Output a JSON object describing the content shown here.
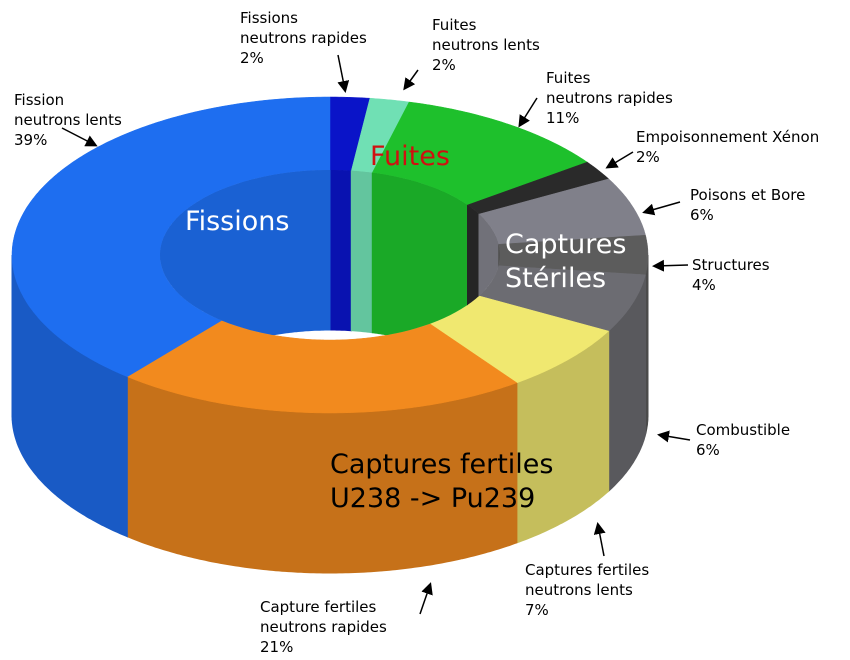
{
  "chart_data": {
    "type": "donut3d",
    "categories": [
      "Fissions\nneutrons rapides",
      "Fuites\nneutrons lents",
      "Fuites\nneutrons rapides",
      "Empoisonnement Xénon",
      "Poisons et Bore",
      "Structures",
      "Combustible",
      "Captures fertiles\nneutrons lents",
      "Capture fertiles\nneutrons rapides",
      "Fission\nneutrons lents"
    ],
    "values": [
      2,
      2,
      11,
      2,
      6,
      4,
      6,
      7,
      21,
      39
    ],
    "value_labels": [
      "2%",
      "2%",
      "11%",
      "2%",
      "6%",
      "4%",
      "6%",
      "7%",
      "21%",
      "39%"
    ],
    "colors": [
      "#0a14c8",
      "#70e0b4",
      "#1ec02c",
      "#2a2a2a",
      "#80808a",
      "#5c5c5c",
      "#6c6c72",
      "#f0e870",
      "#f28a1e",
      "#1e6ef0"
    ],
    "annotations": [
      {
        "text": "Fissions",
        "color": "#ffffff"
      },
      {
        "text": "Fuites",
        "color": "#d01010"
      },
      {
        "text": "Captures\nStériles",
        "color": "#ffffff"
      },
      {
        "text": "Captures fertiles\nU238 -> Pu239",
        "color": "#000000"
      }
    ]
  }
}
